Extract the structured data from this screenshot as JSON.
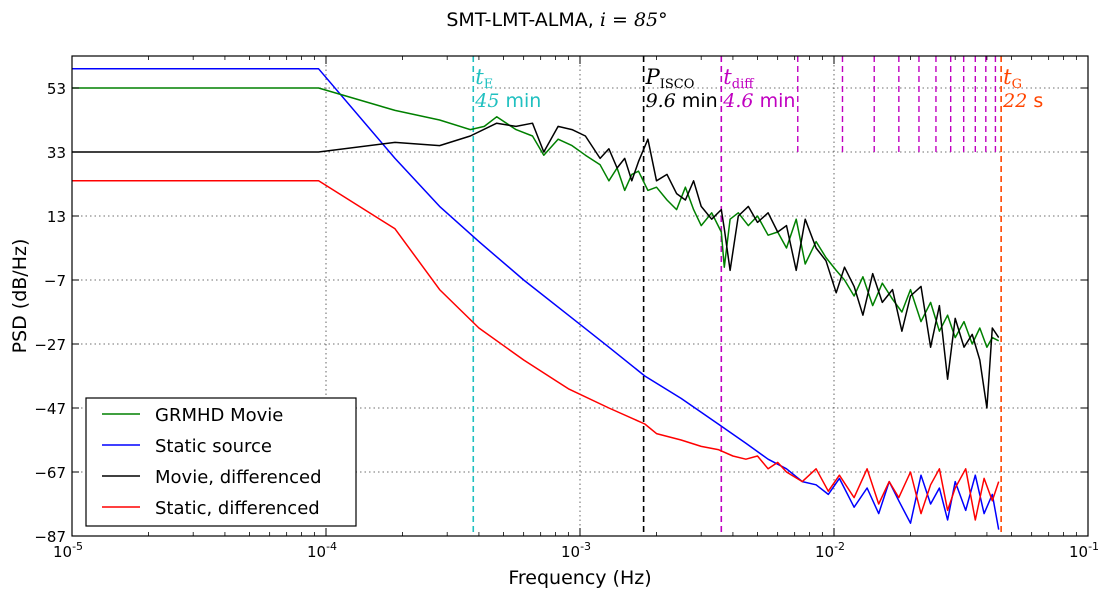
{
  "chart_data": {
    "type": "line",
    "title_text": "SMT-LMT-ALMA,",
    "title_math": "i = 85°",
    "xlabel": "Frequency (Hz)",
    "ylabel": "PSD (dB/Hz)",
    "x_scale": "log",
    "xlim": [
      1e-05,
      0.1
    ],
    "ylim": [
      -87,
      63
    ],
    "grid": true,
    "legend_position": "bottom-left",
    "x_ticks": [
      {
        "value": 1e-05,
        "base": "10",
        "exp": "-5"
      },
      {
        "value": 0.0001,
        "base": "10",
        "exp": "-4"
      },
      {
        "value": 0.001,
        "base": "10",
        "exp": "-3"
      },
      {
        "value": 0.01,
        "base": "10",
        "exp": "-2"
      },
      {
        "value": 0.1,
        "base": "10",
        "exp": "-1"
      }
    ],
    "y_ticks": [
      {
        "value": 53,
        "label": "53"
      },
      {
        "value": 33,
        "label": "33"
      },
      {
        "value": 13,
        "label": "13"
      },
      {
        "value": -7,
        "label": "−7"
      },
      {
        "value": -27,
        "label": "−27"
      },
      {
        "value": -47,
        "label": "−47"
      },
      {
        "value": -67,
        "label": "−67"
      },
      {
        "value": -87,
        "label": "−87"
      }
    ],
    "series": [
      {
        "name": "GRMHD Movie",
        "color": "#008000",
        "x": [
          1e-05,
          9.35e-05,
          0.000187,
          0.00028,
          0.00037,
          0.00042,
          0.00047,
          0.00056,
          0.00065,
          0.00072,
          0.00082,
          0.00093,
          0.00105,
          0.0012,
          0.0013,
          0.0014,
          0.0015,
          0.0016,
          0.0017,
          0.00185,
          0.002,
          0.0022,
          0.0024,
          0.0026,
          0.0028,
          0.003,
          0.0033,
          0.0036,
          0.0037,
          0.0039,
          0.0042,
          0.0046,
          0.005,
          0.0055,
          0.006,
          0.0065,
          0.0071,
          0.0077,
          0.0085,
          0.0093,
          0.0102,
          0.011,
          0.012,
          0.013,
          0.0142,
          0.0155,
          0.017,
          0.0185,
          0.02,
          0.022,
          0.024,
          0.026,
          0.028,
          0.03,
          0.0325,
          0.035,
          0.0375,
          0.04,
          0.042,
          0.0445
        ],
        "y": [
          53,
          53,
          46,
          43,
          40,
          41,
          44,
          40,
          38,
          32,
          37,
          35,
          32,
          29,
          24,
          28,
          21,
          26,
          27,
          21,
          22,
          18,
          15,
          22,
          15,
          10,
          14,
          8,
          -3,
          12,
          14,
          10,
          13,
          7,
          8,
          3,
          12,
          -2,
          5,
          0,
          -4,
          -7,
          -12,
          -6,
          -15,
          -8,
          -13,
          -17,
          -10,
          -20,
          -14,
          -23,
          -18,
          -25,
          -20,
          -27,
          -22,
          -28,
          -25,
          -26
        ]
      },
      {
        "name": "Static source",
        "color": "#0000ff",
        "x": [
          1e-05,
          9.35e-05,
          0.000187,
          0.00028,
          0.0004,
          0.0006,
          0.0009,
          0.0013,
          0.0018,
          0.0025,
          0.0035,
          0.0045,
          0.0055,
          0.0065,
          0.0075,
          0.0085,
          0.0095,
          0.0105,
          0.012,
          0.0135,
          0.015,
          0.0165,
          0.018,
          0.02,
          0.022,
          0.024,
          0.026,
          0.028,
          0.03,
          0.033,
          0.036,
          0.039,
          0.042,
          0.0445
        ],
        "y": [
          59,
          59,
          31,
          16,
          5,
          -7,
          -18,
          -28,
          -37,
          -44,
          -52,
          -58,
          -63,
          -66,
          -70,
          -71,
          -74,
          -69,
          -78,
          -72,
          -80,
          -70,
          -76,
          -83,
          -68,
          -77,
          -72,
          -82,
          -70,
          -79,
          -68,
          -80,
          -74,
          -85
        ]
      },
      {
        "name": "Movie, differenced",
        "color": "#000000",
        "x": [
          1e-05,
          9.35e-05,
          0.000187,
          0.00028,
          0.00037,
          0.00047,
          0.00056,
          0.00065,
          0.00072,
          0.00082,
          0.00093,
          0.00105,
          0.0012,
          0.0013,
          0.0014,
          0.0015,
          0.0016,
          0.0017,
          0.00185,
          0.002,
          0.0022,
          0.0024,
          0.0026,
          0.0028,
          0.003,
          0.0033,
          0.0036,
          0.0037,
          0.0039,
          0.0042,
          0.0046,
          0.005,
          0.0055,
          0.006,
          0.0065,
          0.0071,
          0.0077,
          0.0085,
          0.0093,
          0.0102,
          0.011,
          0.012,
          0.013,
          0.0142,
          0.0155,
          0.017,
          0.0185,
          0.02,
          0.022,
          0.024,
          0.026,
          0.028,
          0.03,
          0.0325,
          0.035,
          0.0375,
          0.04,
          0.042,
          0.0445
        ],
        "y": [
          33,
          33,
          36,
          35,
          38,
          42,
          41,
          42,
          33,
          41,
          40,
          38,
          31,
          34,
          28,
          31,
          24,
          30,
          37,
          24,
          26,
          20,
          18,
          24,
          16,
          12,
          15,
          9,
          -4,
          13,
          16,
          11,
          14,
          8,
          10,
          -4,
          12,
          3,
          -1,
          -11,
          -3,
          -9,
          -18,
          -5,
          -14,
          -10,
          -23,
          -12,
          -9,
          -28,
          -15,
          -38,
          -19,
          -28,
          -24,
          -32,
          -47,
          -22,
          -25
        ]
      },
      {
        "name": "Static, differenced",
        "color": "#ff0000",
        "x": [
          1e-05,
          9.35e-05,
          0.000187,
          0.00028,
          0.0004,
          0.0006,
          0.0009,
          0.0013,
          0.0018,
          0.002,
          0.0025,
          0.003,
          0.0035,
          0.004,
          0.0045,
          0.005,
          0.0055,
          0.006,
          0.0065,
          0.0075,
          0.0085,
          0.0095,
          0.0105,
          0.012,
          0.0135,
          0.015,
          0.0165,
          0.018,
          0.02,
          0.022,
          0.024,
          0.026,
          0.028,
          0.03,
          0.033,
          0.036,
          0.039,
          0.042,
          0.0445
        ],
        "y": [
          24,
          24,
          9,
          -10,
          -22,
          -32,
          -41,
          -47,
          -52,
          -55,
          -57,
          -59,
          -60,
          -62,
          -63,
          -62,
          -66,
          -64,
          -67,
          -70,
          -66,
          -73,
          -68,
          -75,
          -66,
          -77,
          -70,
          -75,
          -67,
          -80,
          -71,
          -66,
          -79,
          -72,
          -66,
          -82,
          -69,
          -76,
          -70
        ]
      }
    ],
    "annotations": [
      {
        "name": "t_E",
        "x": 0.00038,
        "color": "#20c0c0",
        "symbol": "t",
        "sub": "E",
        "value": "45",
        "unit": "min"
      },
      {
        "name": "P_ISCO",
        "x": 0.00178,
        "color": "#000000",
        "symbol": "P",
        "sub": "ISCO",
        "value": "9.6",
        "unit": "min"
      },
      {
        "name": "t_diff",
        "x": 0.0036,
        "color": "#c000c0",
        "symbol": "t",
        "sub": "diff",
        "value": "4.6",
        "unit": "min"
      },
      {
        "name": "t_G",
        "x": 0.0455,
        "color": "#ff4500",
        "symbol": "t",
        "sub": "G",
        "value": "22",
        "unit": "s"
      }
    ],
    "diff_harmonics_x": [
      0.0072,
      0.0108,
      0.0144,
      0.018,
      0.0216,
      0.0252,
      0.0288,
      0.0324,
      0.036,
      0.0396,
      0.0432
    ]
  }
}
